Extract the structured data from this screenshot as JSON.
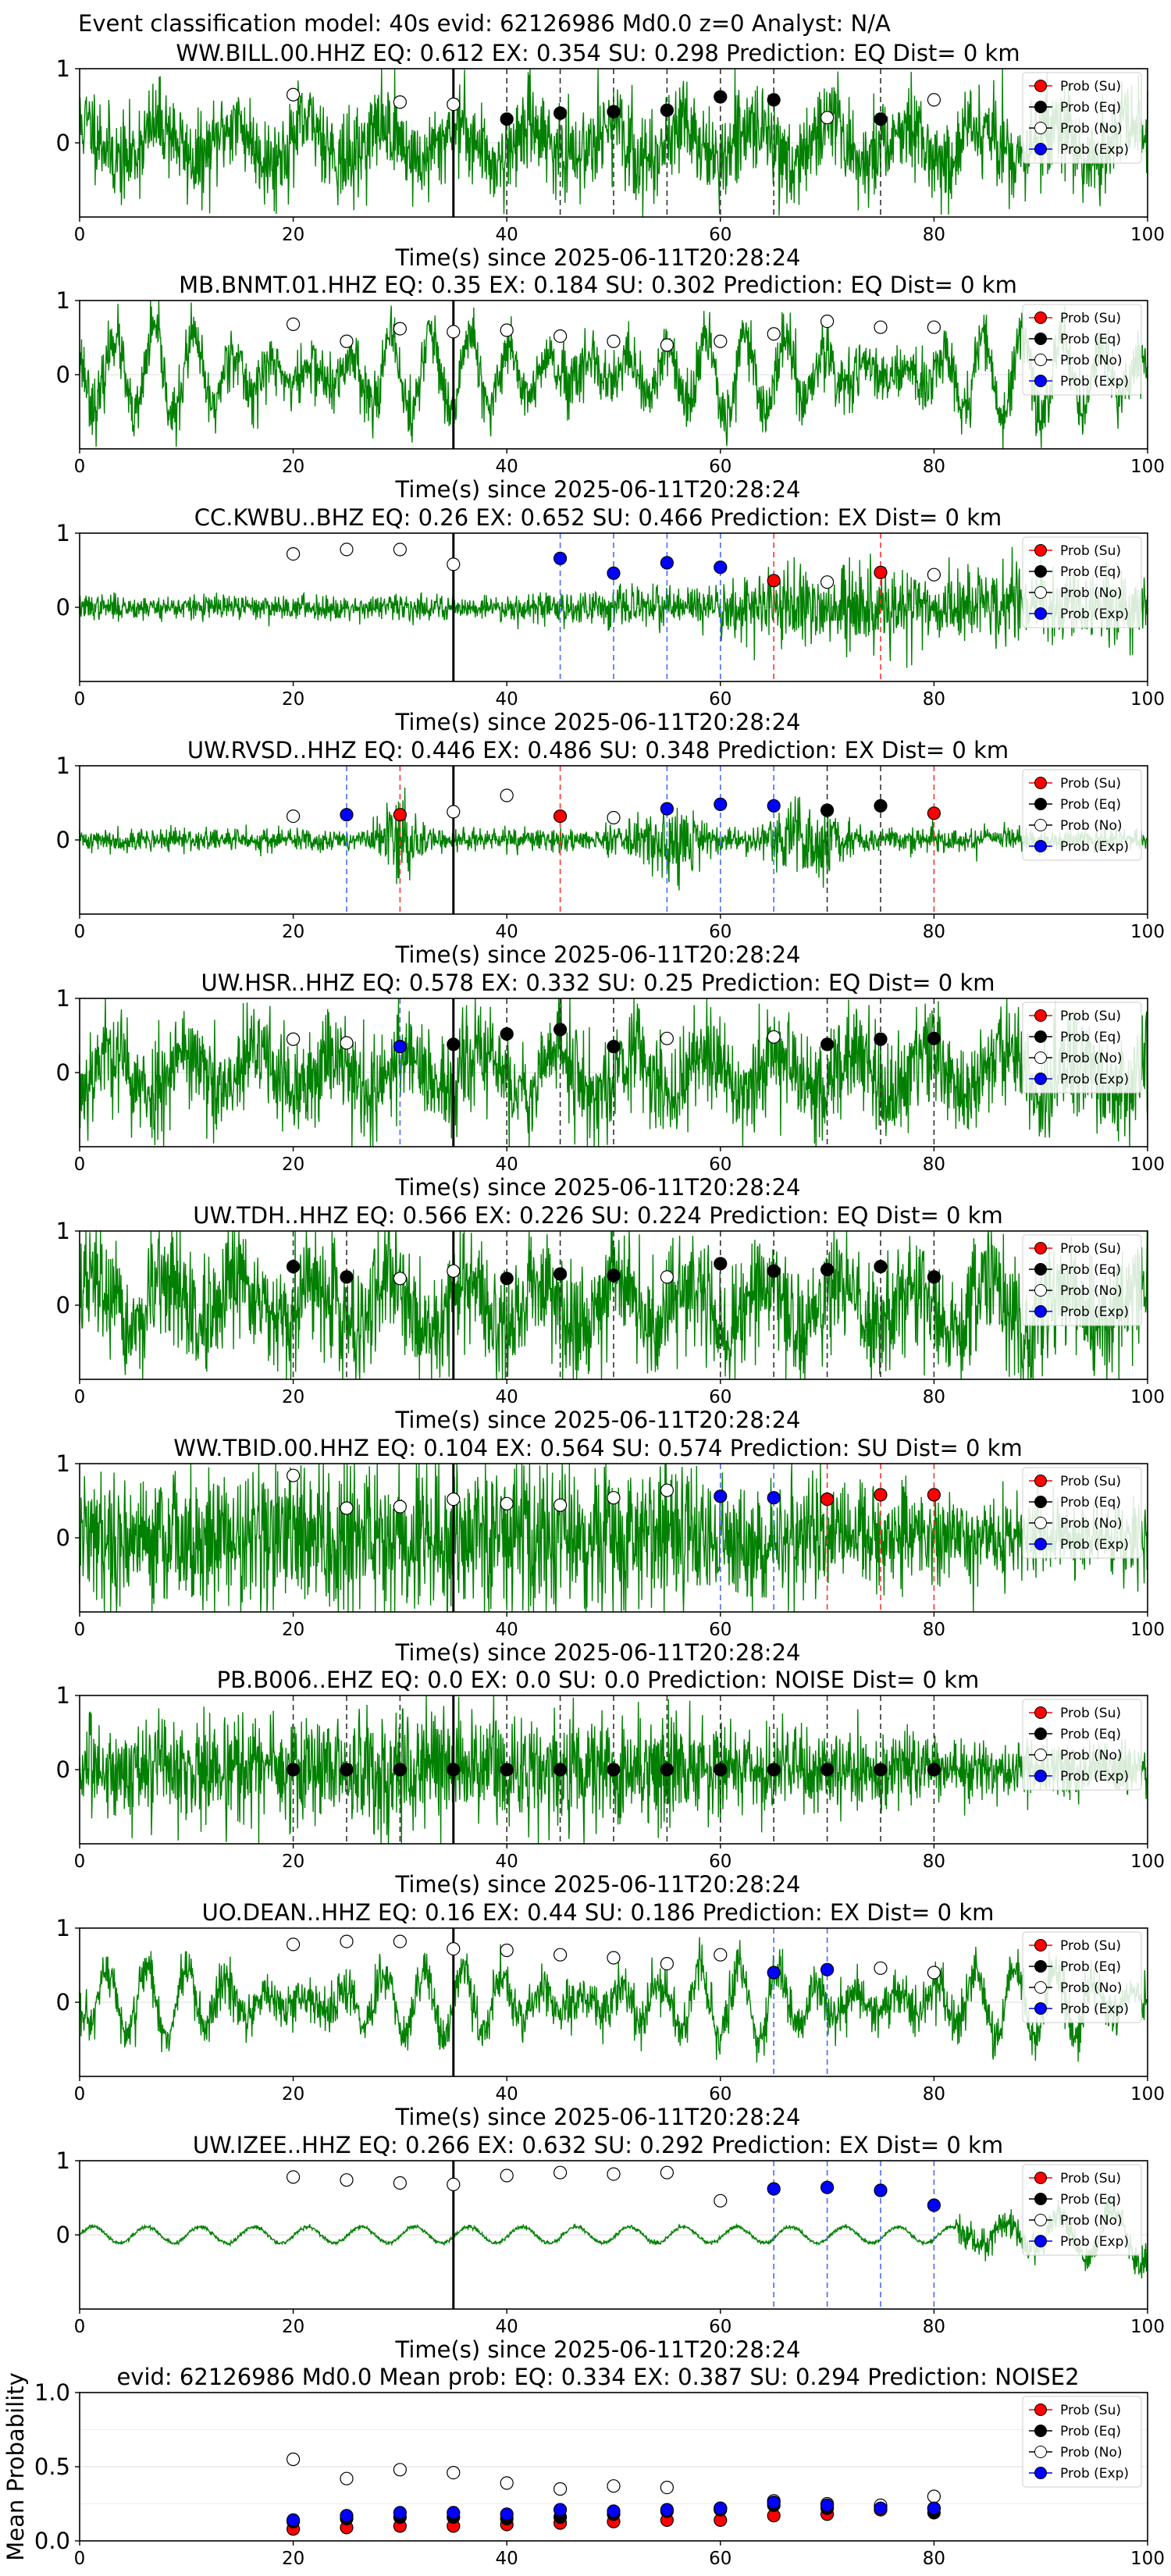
{
  "suptitle": "Event classification model: 40s evid: 62126986 Md0.0 z=0 Analyst: N/A",
  "xlabel": "Time(s) since 2025-06-11T20:28:24",
  "legend": [
    "Prob (Su)",
    "Prob (Eq)",
    "Prob (No)",
    "Prob (Exp)"
  ],
  "colors": {
    "su": "#ff0000",
    "eq": "#000000",
    "no": "#ffffff",
    "exp": "#0000ff",
    "trace": "#008000",
    "onset": "#000000"
  },
  "chart_data": [
    {
      "type": "line",
      "title": "WW.BILL.00.HHZ   EQ: 0.612  EX: 0.354  SU: 0.298   Prediction: EQ    Dist= 0 km",
      "xlim": [
        0,
        100
      ],
      "ylim": [
        -1,
        1
      ],
      "yticks": [
        "1",
        "0"
      ],
      "xticks": [
        "0",
        "20",
        "40",
        "60",
        "80",
        "100"
      ],
      "onset_x": 35,
      "seed": 11,
      "amp": 0.42,
      "style": "mixed",
      "points": [
        [
          20,
          "no",
          0.65
        ],
        [
          30,
          "no",
          0.55
        ],
        [
          35,
          "no",
          0.52
        ],
        [
          40,
          "eq",
          0.32
        ],
        [
          45,
          "eq",
          0.4
        ],
        [
          50,
          "eq",
          0.42
        ],
        [
          55,
          "eq",
          0.44
        ],
        [
          60,
          "eq",
          0.62
        ],
        [
          65,
          "eq",
          0.58
        ],
        [
          70,
          "no",
          0.34
        ],
        [
          75,
          "eq",
          0.32
        ],
        [
          80,
          "no",
          0.58
        ]
      ],
      "vlines": [
        [
          40,
          "eq"
        ],
        [
          45,
          "eq"
        ],
        [
          50,
          "eq"
        ],
        [
          55,
          "eq"
        ],
        [
          60,
          "eq"
        ],
        [
          65,
          "eq"
        ],
        [
          75,
          "eq"
        ]
      ]
    },
    {
      "type": "line",
      "title": "MB.BNMT.01.HHZ   EQ: 0.35  EX: 0.184  SU: 0.302   Prediction: EQ    Dist= 0 km",
      "xlim": [
        0,
        100
      ],
      "ylim": [
        -1,
        1
      ],
      "yticks": [
        "1",
        "0"
      ],
      "xticks": [
        "0",
        "20",
        "40",
        "60",
        "80",
        "100"
      ],
      "onset_x": 35,
      "seed": 23,
      "amp": 0.55,
      "style": "wavy",
      "points": [
        [
          20,
          "no",
          0.68
        ],
        [
          25,
          "no",
          0.45
        ],
        [
          30,
          "no",
          0.62
        ],
        [
          35,
          "no",
          0.58
        ],
        [
          40,
          "no",
          0.6
        ],
        [
          45,
          "no",
          0.52
        ],
        [
          50,
          "no",
          0.45
        ],
        [
          55,
          "no",
          0.4
        ],
        [
          60,
          "no",
          0.45
        ],
        [
          65,
          "no",
          0.55
        ],
        [
          70,
          "no",
          0.72
        ],
        [
          75,
          "no",
          0.64
        ],
        [
          80,
          "no",
          0.64
        ]
      ],
      "vlines": []
    },
    {
      "type": "line",
      "title": "CC.KWBU..BHZ   EQ: 0.26  EX: 0.652  SU: 0.466   Prediction: EX    Dist= 0 km",
      "xlim": [
        0,
        100
      ],
      "ylim": [
        -1,
        1
      ],
      "yticks": [
        "1",
        "0"
      ],
      "xticks": [
        "0",
        "20",
        "40",
        "60",
        "80",
        "100"
      ],
      "onset_x": 35,
      "seed": 37,
      "amp": 0.3,
      "style": "growing",
      "points": [
        [
          20,
          "no",
          0.72
        ],
        [
          25,
          "no",
          0.78
        ],
        [
          30,
          "no",
          0.78
        ],
        [
          35,
          "no",
          0.58
        ],
        [
          45,
          "exp",
          0.66
        ],
        [
          50,
          "exp",
          0.46
        ],
        [
          55,
          "exp",
          0.6
        ],
        [
          60,
          "exp",
          0.54
        ],
        [
          65,
          "su",
          0.36
        ],
        [
          70,
          "no",
          0.34
        ],
        [
          75,
          "su",
          0.47
        ],
        [
          80,
          "no",
          0.44
        ]
      ],
      "vlines": [
        [
          45,
          "exp"
        ],
        [
          50,
          "exp"
        ],
        [
          55,
          "exp"
        ],
        [
          60,
          "exp"
        ],
        [
          65,
          "su"
        ],
        [
          75,
          "su"
        ]
      ]
    },
    {
      "type": "line",
      "title": "UW.RVSD..HHZ   EQ: 0.446  EX: 0.486  SU: 0.348   Prediction: EX    Dist= 0 km",
      "xlim": [
        0,
        100
      ],
      "ylim": [
        -1,
        1
      ],
      "yticks": [
        "1",
        "0"
      ],
      "xticks": [
        "0",
        "20",
        "40",
        "60",
        "80",
        "100"
      ],
      "onset_x": 35,
      "seed": 41,
      "amp": 0.25,
      "style": "bursty",
      "points": [
        [
          20,
          "no",
          0.32
        ],
        [
          25,
          "exp",
          0.34
        ],
        [
          30,
          "su",
          0.34
        ],
        [
          35,
          "no",
          0.38
        ],
        [
          40,
          "no",
          0.6
        ],
        [
          45,
          "su",
          0.32
        ],
        [
          50,
          "no",
          0.3
        ],
        [
          55,
          "exp",
          0.42
        ],
        [
          60,
          "exp",
          0.48
        ],
        [
          65,
          "exp",
          0.46
        ],
        [
          70,
          "eq",
          0.4
        ],
        [
          75,
          "eq",
          0.46
        ],
        [
          80,
          "su",
          0.36
        ]
      ],
      "vlines": [
        [
          25,
          "exp"
        ],
        [
          30,
          "su"
        ],
        [
          45,
          "su"
        ],
        [
          55,
          "exp"
        ],
        [
          60,
          "exp"
        ],
        [
          65,
          "exp"
        ],
        [
          70,
          "eq"
        ],
        [
          75,
          "eq"
        ],
        [
          80,
          "su"
        ]
      ]
    },
    {
      "type": "line",
      "title": "UW.HSR..HHZ   EQ: 0.578  EX: 0.332  SU: 0.25   Prediction: EQ    Dist= 0 km",
      "xlim": [
        0,
        100
      ],
      "ylim": [
        -1,
        1
      ],
      "yticks": [
        "1",
        "0"
      ],
      "xticks": [
        "0",
        "20",
        "40",
        "60",
        "80",
        "100"
      ],
      "onset_x": 35,
      "seed": 53,
      "amp": 0.5,
      "style": "mixed",
      "points": [
        [
          20,
          "no",
          0.45
        ],
        [
          25,
          "no",
          0.4
        ],
        [
          30,
          "exp",
          0.35
        ],
        [
          35,
          "eq",
          0.38
        ],
        [
          40,
          "eq",
          0.52
        ],
        [
          45,
          "eq",
          0.58
        ],
        [
          50,
          "eq",
          0.35
        ],
        [
          55,
          "no",
          0.46
        ],
        [
          65,
          "no",
          0.48
        ],
        [
          70,
          "eq",
          0.38
        ],
        [
          75,
          "eq",
          0.45
        ],
        [
          80,
          "eq",
          0.46
        ]
      ],
      "vlines": [
        [
          30,
          "exp"
        ],
        [
          35,
          "eq"
        ],
        [
          40,
          "eq"
        ],
        [
          45,
          "eq"
        ],
        [
          50,
          "eq"
        ],
        [
          70,
          "eq"
        ],
        [
          75,
          "eq"
        ],
        [
          80,
          "eq"
        ]
      ]
    },
    {
      "type": "line",
      "title": "UW.TDH..HHZ   EQ: 0.566  EX: 0.226  SU: 0.224   Prediction: EQ    Dist= 0 km",
      "xlim": [
        0,
        100
      ],
      "ylim": [
        -1,
        1
      ],
      "yticks": [
        "1",
        "0"
      ],
      "xticks": [
        "0",
        "20",
        "40",
        "60",
        "80",
        "100"
      ],
      "onset_x": 35,
      "seed": 67,
      "amp": 0.55,
      "style": "mixed",
      "points": [
        [
          20,
          "eq",
          0.52
        ],
        [
          25,
          "eq",
          0.38
        ],
        [
          30,
          "no",
          0.36
        ],
        [
          35,
          "no",
          0.46
        ],
        [
          40,
          "eq",
          0.36
        ],
        [
          45,
          "eq",
          0.42
        ],
        [
          50,
          "eq",
          0.4
        ],
        [
          55,
          "no",
          0.38
        ],
        [
          60,
          "eq",
          0.56
        ],
        [
          65,
          "eq",
          0.46
        ],
        [
          70,
          "eq",
          0.48
        ],
        [
          75,
          "eq",
          0.52
        ],
        [
          80,
          "eq",
          0.38
        ]
      ],
      "vlines": [
        [
          20,
          "eq"
        ],
        [
          25,
          "eq"
        ],
        [
          40,
          "eq"
        ],
        [
          45,
          "eq"
        ],
        [
          50,
          "eq"
        ],
        [
          60,
          "eq"
        ],
        [
          65,
          "eq"
        ],
        [
          70,
          "eq"
        ],
        [
          75,
          "eq"
        ],
        [
          80,
          "eq"
        ]
      ]
    },
    {
      "type": "line",
      "title": "WW.TBID.00.HHZ   EQ: 0.104  EX: 0.564  SU: 0.574   Prediction: SU    Dist= 0 km",
      "xlim": [
        0,
        100
      ],
      "ylim": [
        -1,
        1
      ],
      "yticks": [
        "1",
        "0"
      ],
      "xticks": [
        "0",
        "20",
        "40",
        "60",
        "80",
        "100"
      ],
      "onset_x": 35,
      "seed": 79,
      "amp": 0.5,
      "style": "dense",
      "points": [
        [
          20,
          "no",
          0.84
        ],
        [
          25,
          "no",
          0.4
        ],
        [
          30,
          "no",
          0.42
        ],
        [
          35,
          "no",
          0.52
        ],
        [
          40,
          "no",
          0.46
        ],
        [
          45,
          "no",
          0.44
        ],
        [
          50,
          "no",
          0.54
        ],
        [
          55,
          "no",
          0.64
        ],
        [
          60,
          "exp",
          0.56
        ],
        [
          65,
          "exp",
          0.54
        ],
        [
          70,
          "su",
          0.52
        ],
        [
          75,
          "su",
          0.58
        ],
        [
          80,
          "su",
          0.58
        ]
      ],
      "vlines": [
        [
          60,
          "exp"
        ],
        [
          65,
          "exp"
        ],
        [
          70,
          "su"
        ],
        [
          75,
          "su"
        ],
        [
          80,
          "su"
        ]
      ]
    },
    {
      "type": "line",
      "title": "PB.B006..EHZ   EQ: 0.0  EX: 0.0  SU: 0.0   Prediction: NOISE    Dist= 0 km",
      "xlim": [
        0,
        100
      ],
      "ylim": [
        -1,
        1
      ],
      "yticks": [
        "1",
        "0"
      ],
      "xticks": [
        "0",
        "20",
        "40",
        "60",
        "80",
        "100"
      ],
      "onset_x": 35,
      "seed": 83,
      "amp": 0.38,
      "style": "dense",
      "points": [
        [
          20,
          "eq",
          0.0
        ],
        [
          25,
          "eq",
          0.0
        ],
        [
          30,
          "eq",
          0.0
        ],
        [
          35,
          "eq",
          0.0
        ],
        [
          40,
          "eq",
          0.0
        ],
        [
          45,
          "eq",
          0.0
        ],
        [
          50,
          "eq",
          0.0
        ],
        [
          55,
          "eq",
          0.0
        ],
        [
          60,
          "eq",
          0.0
        ],
        [
          65,
          "eq",
          0.0
        ],
        [
          70,
          "eq",
          0.0
        ],
        [
          75,
          "eq",
          0.0
        ],
        [
          80,
          "eq",
          0.0
        ]
      ],
      "vlines": [
        [
          20,
          "eq"
        ],
        [
          25,
          "eq"
        ],
        [
          30,
          "eq"
        ],
        [
          40,
          "eq"
        ],
        [
          45,
          "eq"
        ],
        [
          50,
          "eq"
        ],
        [
          55,
          "eq"
        ],
        [
          60,
          "eq"
        ],
        [
          65,
          "eq"
        ],
        [
          70,
          "eq"
        ],
        [
          75,
          "eq"
        ],
        [
          80,
          "eq"
        ]
      ]
    },
    {
      "type": "line",
      "title": "UO.DEAN..HHZ   EQ: 0.16  EX: 0.44  SU: 0.186   Prediction: EX    Dist= 0 km",
      "xlim": [
        0,
        100
      ],
      "ylim": [
        -1,
        1
      ],
      "yticks": [
        "1",
        "0"
      ],
      "xticks": [
        "0",
        "20",
        "40",
        "60",
        "80",
        "100"
      ],
      "onset_x": 35,
      "seed": 97,
      "amp": 0.45,
      "style": "wavy",
      "points": [
        [
          20,
          "no",
          0.78
        ],
        [
          25,
          "no",
          0.82
        ],
        [
          30,
          "no",
          0.82
        ],
        [
          35,
          "no",
          0.72
        ],
        [
          40,
          "no",
          0.7
        ],
        [
          45,
          "no",
          0.64
        ],
        [
          50,
          "no",
          0.6
        ],
        [
          55,
          "no",
          0.52
        ],
        [
          60,
          "no",
          0.64
        ],
        [
          65,
          "exp",
          0.4
        ],
        [
          70,
          "exp",
          0.44
        ],
        [
          75,
          "no",
          0.46
        ],
        [
          80,
          "no",
          0.4
        ]
      ],
      "vlines": [
        [
          65,
          "exp"
        ],
        [
          70,
          "exp"
        ]
      ]
    },
    {
      "type": "line",
      "title": "UW.IZEE..HHZ   EQ: 0.266  EX: 0.632  SU: 0.292   Prediction: EX    Dist= 0 km",
      "xlim": [
        0,
        100
      ],
      "ylim": [
        -1,
        1
      ],
      "yticks": [
        "1",
        "0"
      ],
      "xticks": [
        "0",
        "20",
        "40",
        "60",
        "80",
        "100"
      ],
      "onset_x": 35,
      "seed": 101,
      "amp": 0.22,
      "style": "smooth",
      "points": [
        [
          20,
          "no",
          0.78
        ],
        [
          25,
          "no",
          0.74
        ],
        [
          30,
          "no",
          0.7
        ],
        [
          35,
          "no",
          0.68
        ],
        [
          40,
          "no",
          0.8
        ],
        [
          45,
          "no",
          0.84
        ],
        [
          50,
          "no",
          0.82
        ],
        [
          55,
          "no",
          0.84
        ],
        [
          60,
          "no",
          0.46
        ],
        [
          65,
          "exp",
          0.62
        ],
        [
          70,
          "exp",
          0.64
        ],
        [
          75,
          "exp",
          0.6
        ],
        [
          80,
          "exp",
          0.4
        ]
      ],
      "vlines": [
        [
          65,
          "exp"
        ],
        [
          70,
          "exp"
        ],
        [
          75,
          "exp"
        ],
        [
          80,
          "exp"
        ]
      ]
    },
    {
      "type": "scatter",
      "title": "evid: 62126986   Md0.0   Mean prob:   EQ: 0.334  EX: 0.387  SU: 0.294   Prediction: NOISE2",
      "ylabel": "Mean Probability",
      "xlim": [
        0,
        100
      ],
      "ylim": [
        0,
        1
      ],
      "yticks": [
        "0.0",
        "0.5",
        "1.0"
      ],
      "xticks": [
        "0",
        "20",
        "40",
        "60",
        "80",
        "100"
      ],
      "x": [
        20,
        25,
        30,
        35,
        40,
        45,
        50,
        55,
        60,
        65,
        70,
        75,
        80
      ],
      "series": [
        {
          "name": "Prob (Su)",
          "key": "su",
          "values": [
            0.08,
            0.09,
            0.1,
            0.1,
            0.11,
            0.12,
            0.13,
            0.14,
            0.14,
            0.17,
            0.18,
            0.21,
            0.22
          ]
        },
        {
          "name": "Prob (Eq)",
          "key": "eq",
          "values": [
            0.13,
            0.15,
            0.16,
            0.16,
            0.15,
            0.16,
            0.18,
            0.2,
            0.21,
            0.24,
            0.22,
            0.23,
            0.19
          ]
        },
        {
          "name": "Prob (No)",
          "key": "no",
          "values": [
            0.55,
            0.42,
            0.48,
            0.46,
            0.39,
            0.35,
            0.37,
            0.36,
            0.22,
            0.27,
            0.25,
            0.24,
            0.3
          ]
        },
        {
          "name": "Prob (Exp)",
          "key": "exp",
          "values": [
            0.14,
            0.17,
            0.19,
            0.19,
            0.18,
            0.21,
            0.2,
            0.21,
            0.22,
            0.26,
            0.24,
            0.22,
            0.22
          ]
        }
      ]
    }
  ]
}
